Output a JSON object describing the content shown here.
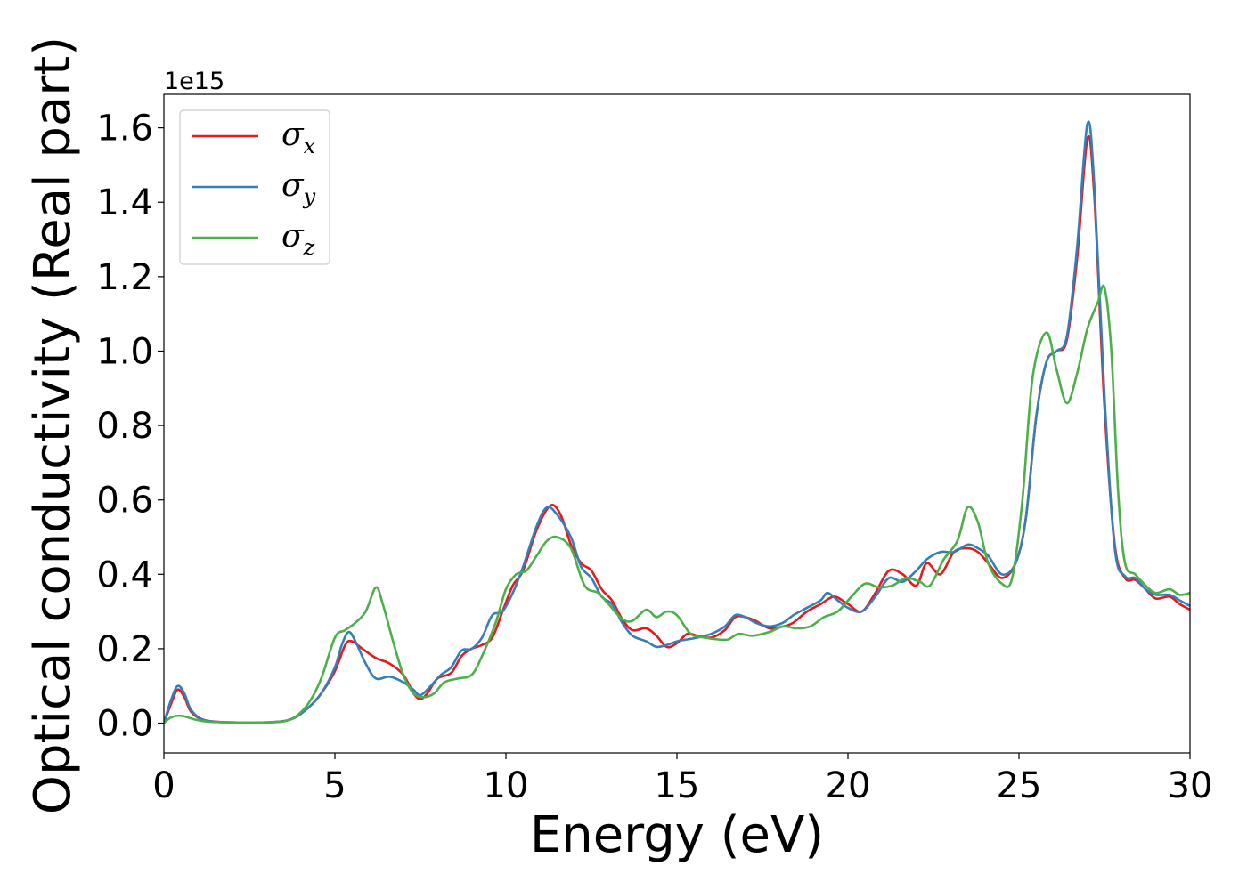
{
  "chart_data": {
    "type": "line",
    "title": "",
    "xlabel": "Energy (eV)",
    "ylabel": "Optical conductivity (Real part)",
    "y_offset_label": "1e15",
    "xlim": [
      0,
      30
    ],
    "ylim": [
      -0.08,
      1.69
    ],
    "x_ticks": [
      0,
      5,
      10,
      15,
      20,
      25,
      30
    ],
    "y_ticks": [
      0.0,
      0.2,
      0.4,
      0.6,
      0.8,
      1.0,
      1.2,
      1.4,
      1.6
    ],
    "x_tick_labels": [
      "0",
      "5",
      "10",
      "15",
      "20",
      "25",
      "30"
    ],
    "y_tick_labels": [
      "0.0",
      "0.2",
      "0.4",
      "0.6",
      "0.8",
      "1.0",
      "1.2",
      "1.4",
      "1.6"
    ],
    "grid": false,
    "legend_position": "top-left",
    "series": [
      {
        "name": "σx",
        "legend_symbol": "σ",
        "legend_subscript": "x",
        "color": "#e41a1c",
        "points": [
          [
            0,
            0
          ],
          [
            0.2,
            0.05
          ],
          [
            0.4,
            0.09
          ],
          [
            0.6,
            0.07
          ],
          [
            0.8,
            0.03
          ],
          [
            1.2,
            0.008
          ],
          [
            2,
            0.002
          ],
          [
            3,
            0.002
          ],
          [
            3.7,
            0.01
          ],
          [
            4.2,
            0.04
          ],
          [
            4.6,
            0.08
          ],
          [
            5,
            0.14
          ],
          [
            5.3,
            0.21
          ],
          [
            5.5,
            0.22
          ],
          [
            5.8,
            0.2
          ],
          [
            6.2,
            0.175
          ],
          [
            6.6,
            0.16
          ],
          [
            7,
            0.13
          ],
          [
            7.3,
            0.08
          ],
          [
            7.5,
            0.065
          ],
          [
            7.7,
            0.08
          ],
          [
            8,
            0.12
          ],
          [
            8.4,
            0.135
          ],
          [
            8.7,
            0.18
          ],
          [
            9,
            0.2
          ],
          [
            9.3,
            0.21
          ],
          [
            9.6,
            0.23
          ],
          [
            9.9,
            0.3
          ],
          [
            10.2,
            0.37
          ],
          [
            10.5,
            0.41
          ],
          [
            10.9,
            0.52
          ],
          [
            11.3,
            0.585
          ],
          [
            11.6,
            0.56
          ],
          [
            11.9,
            0.48
          ],
          [
            12.2,
            0.43
          ],
          [
            12.5,
            0.41
          ],
          [
            12.8,
            0.36
          ],
          [
            13.1,
            0.33
          ],
          [
            13.4,
            0.28
          ],
          [
            13.7,
            0.25
          ],
          [
            14.1,
            0.255
          ],
          [
            14.4,
            0.235
          ],
          [
            14.7,
            0.205
          ],
          [
            15,
            0.215
          ],
          [
            15.3,
            0.24
          ],
          [
            15.6,
            0.235
          ],
          [
            16,
            0.23
          ],
          [
            16.4,
            0.25
          ],
          [
            16.7,
            0.285
          ],
          [
            17,
            0.285
          ],
          [
            17.3,
            0.275
          ],
          [
            17.7,
            0.255
          ],
          [
            18.1,
            0.26
          ],
          [
            18.4,
            0.27
          ],
          [
            18.8,
            0.3
          ],
          [
            19.2,
            0.32
          ],
          [
            19.6,
            0.34
          ],
          [
            20,
            0.32
          ],
          [
            20.4,
            0.3
          ],
          [
            20.8,
            0.35
          ],
          [
            21.2,
            0.41
          ],
          [
            21.6,
            0.4
          ],
          [
            22,
            0.37
          ],
          [
            22.3,
            0.43
          ],
          [
            22.7,
            0.4
          ],
          [
            23.1,
            0.46
          ],
          [
            23.5,
            0.47
          ],
          [
            23.8,
            0.46
          ],
          [
            24.1,
            0.43
          ],
          [
            24.5,
            0.39
          ],
          [
            24.9,
            0.43
          ],
          [
            25.2,
            0.55
          ],
          [
            25.5,
            0.82
          ],
          [
            25.8,
            0.97
          ],
          [
            26.1,
            1.0
          ],
          [
            26.4,
            1.03
          ],
          [
            26.7,
            1.25
          ],
          [
            27,
            1.57
          ],
          [
            27.2,
            1.42
          ],
          [
            27.5,
            0.85
          ],
          [
            27.8,
            0.48
          ],
          [
            28.1,
            0.39
          ],
          [
            28.4,
            0.385
          ],
          [
            28.7,
            0.36
          ],
          [
            29,
            0.335
          ],
          [
            29.4,
            0.34
          ],
          [
            29.7,
            0.32
          ],
          [
            30,
            0.305
          ]
        ]
      },
      {
        "name": "σy",
        "legend_symbol": "σ",
        "legend_subscript": "y",
        "color": "#377eb8",
        "points": [
          [
            0,
            0
          ],
          [
            0.2,
            0.06
          ],
          [
            0.4,
            0.1
          ],
          [
            0.6,
            0.08
          ],
          [
            0.8,
            0.035
          ],
          [
            1.2,
            0.008
          ],
          [
            2,
            0.002
          ],
          [
            3,
            0.002
          ],
          [
            3.7,
            0.01
          ],
          [
            4.2,
            0.04
          ],
          [
            4.6,
            0.08
          ],
          [
            5,
            0.15
          ],
          [
            5.2,
            0.21
          ],
          [
            5.4,
            0.245
          ],
          [
            5.6,
            0.22
          ],
          [
            5.9,
            0.16
          ],
          [
            6.2,
            0.12
          ],
          [
            6.6,
            0.125
          ],
          [
            7,
            0.11
          ],
          [
            7.3,
            0.09
          ],
          [
            7.5,
            0.075
          ],
          [
            7.8,
            0.1
          ],
          [
            8.1,
            0.13
          ],
          [
            8.4,
            0.15
          ],
          [
            8.7,
            0.195
          ],
          [
            9,
            0.2
          ],
          [
            9.3,
            0.23
          ],
          [
            9.6,
            0.29
          ],
          [
            9.9,
            0.3
          ],
          [
            10.2,
            0.35
          ],
          [
            10.5,
            0.42
          ],
          [
            10.9,
            0.53
          ],
          [
            11.2,
            0.58
          ],
          [
            11.5,
            0.56
          ],
          [
            11.9,
            0.5
          ],
          [
            12.2,
            0.42
          ],
          [
            12.5,
            0.39
          ],
          [
            12.8,
            0.34
          ],
          [
            13.1,
            0.32
          ],
          [
            13.4,
            0.27
          ],
          [
            13.7,
            0.235
          ],
          [
            14.1,
            0.22
          ],
          [
            14.4,
            0.205
          ],
          [
            14.7,
            0.21
          ],
          [
            15,
            0.22
          ],
          [
            15.3,
            0.225
          ],
          [
            15.6,
            0.23
          ],
          [
            16,
            0.24
          ],
          [
            16.4,
            0.26
          ],
          [
            16.7,
            0.29
          ],
          [
            17,
            0.285
          ],
          [
            17.3,
            0.27
          ],
          [
            17.7,
            0.26
          ],
          [
            18.1,
            0.27
          ],
          [
            18.4,
            0.29
          ],
          [
            18.8,
            0.31
          ],
          [
            19.2,
            0.33
          ],
          [
            19.4,
            0.35
          ],
          [
            19.7,
            0.33
          ],
          [
            20,
            0.31
          ],
          [
            20.4,
            0.3
          ],
          [
            20.8,
            0.34
          ],
          [
            21.2,
            0.39
          ],
          [
            21.6,
            0.38
          ],
          [
            22,
            0.41
          ],
          [
            22.3,
            0.44
          ],
          [
            22.7,
            0.46
          ],
          [
            23.1,
            0.46
          ],
          [
            23.5,
            0.48
          ],
          [
            23.8,
            0.47
          ],
          [
            24.1,
            0.45
          ],
          [
            24.5,
            0.4
          ],
          [
            24.9,
            0.43
          ],
          [
            25.2,
            0.55
          ],
          [
            25.5,
            0.82
          ],
          [
            25.8,
            0.97
          ],
          [
            26.1,
            1.0
          ],
          [
            26.4,
            1.04
          ],
          [
            26.7,
            1.28
          ],
          [
            27,
            1.61
          ],
          [
            27.2,
            1.45
          ],
          [
            27.5,
            0.88
          ],
          [
            27.8,
            0.47
          ],
          [
            28.1,
            0.395
          ],
          [
            28.4,
            0.39
          ],
          [
            28.7,
            0.36
          ],
          [
            29,
            0.345
          ],
          [
            29.4,
            0.345
          ],
          [
            29.7,
            0.33
          ],
          [
            30,
            0.315
          ]
        ]
      },
      {
        "name": "σz",
        "legend_symbol": "σ",
        "legend_subscript": "z",
        "color": "#4daf4a",
        "points": [
          [
            0,
            0
          ],
          [
            0.2,
            0.015
          ],
          [
            0.5,
            0.02
          ],
          [
            0.9,
            0.01
          ],
          [
            1.3,
            0.004
          ],
          [
            2,
            0.002
          ],
          [
            3,
            0.002
          ],
          [
            3.7,
            0.01
          ],
          [
            4.2,
            0.05
          ],
          [
            4.6,
            0.12
          ],
          [
            5,
            0.23
          ],
          [
            5.3,
            0.25
          ],
          [
            5.6,
            0.27
          ],
          [
            5.9,
            0.3
          ],
          [
            6.2,
            0.365
          ],
          [
            6.4,
            0.32
          ],
          [
            6.7,
            0.22
          ],
          [
            7,
            0.13
          ],
          [
            7.3,
            0.08
          ],
          [
            7.6,
            0.07
          ],
          [
            7.9,
            0.08
          ],
          [
            8.2,
            0.11
          ],
          [
            8.6,
            0.12
          ],
          [
            9,
            0.13
          ],
          [
            9.3,
            0.18
          ],
          [
            9.7,
            0.27
          ],
          [
            10,
            0.36
          ],
          [
            10.3,
            0.4
          ],
          [
            10.6,
            0.41
          ],
          [
            10.9,
            0.45
          ],
          [
            11.2,
            0.49
          ],
          [
            11.5,
            0.5
          ],
          [
            11.9,
            0.47
          ],
          [
            12.3,
            0.37
          ],
          [
            12.7,
            0.35
          ],
          [
            13,
            0.32
          ],
          [
            13.4,
            0.28
          ],
          [
            13.7,
            0.275
          ],
          [
            14.1,
            0.305
          ],
          [
            14.4,
            0.285
          ],
          [
            14.7,
            0.3
          ],
          [
            15,
            0.29
          ],
          [
            15.4,
            0.24
          ],
          [
            15.8,
            0.23
          ],
          [
            16.2,
            0.225
          ],
          [
            16.5,
            0.225
          ],
          [
            16.8,
            0.24
          ],
          [
            17.2,
            0.235
          ],
          [
            17.7,
            0.245
          ],
          [
            18.1,
            0.26
          ],
          [
            18.5,
            0.255
          ],
          [
            18.9,
            0.26
          ],
          [
            19.3,
            0.285
          ],
          [
            19.7,
            0.3
          ],
          [
            20.1,
            0.34
          ],
          [
            20.5,
            0.375
          ],
          [
            20.9,
            0.365
          ],
          [
            21.3,
            0.37
          ],
          [
            21.7,
            0.39
          ],
          [
            22.1,
            0.38
          ],
          [
            22.4,
            0.37
          ],
          [
            22.8,
            0.44
          ],
          [
            23.2,
            0.49
          ],
          [
            23.5,
            0.58
          ],
          [
            23.8,
            0.54
          ],
          [
            24.1,
            0.43
          ],
          [
            24.5,
            0.375
          ],
          [
            24.8,
            0.39
          ],
          [
            25.1,
            0.6
          ],
          [
            25.4,
            0.93
          ],
          [
            25.8,
            1.05
          ],
          [
            26.1,
            0.95
          ],
          [
            26.4,
            0.86
          ],
          [
            26.7,
            0.94
          ],
          [
            27,
            1.06
          ],
          [
            27.3,
            1.13
          ],
          [
            27.5,
            1.17
          ],
          [
            27.7,
            1.0
          ],
          [
            27.9,
            0.62
          ],
          [
            28.1,
            0.43
          ],
          [
            28.4,
            0.4
          ],
          [
            28.7,
            0.37
          ],
          [
            29,
            0.35
          ],
          [
            29.4,
            0.36
          ],
          [
            29.7,
            0.345
          ],
          [
            30,
            0.35
          ]
        ]
      }
    ]
  }
}
